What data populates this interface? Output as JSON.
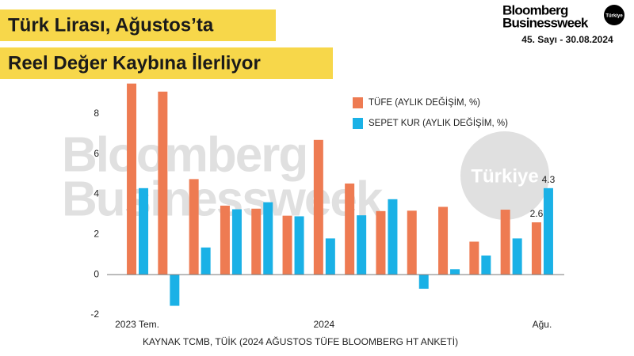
{
  "header": {
    "title": [
      "Türk Lirası, Ağustos’ta",
      "Reel Değer Kaybına İlerliyor"
    ]
  },
  "brand": {
    "name": [
      "Bloomberg",
      "Businessweek"
    ],
    "edition": "Türkiye",
    "issue": "45. Sayı - 30.08.2024"
  },
  "watermark": {
    "name": [
      "Bloomberg",
      "Businessweek"
    ],
    "edition": "Türkiye"
  },
  "chart_data": {
    "type": "bar",
    "categories": [
      "2023 Tem.",
      null,
      null,
      null,
      null,
      null,
      "2024",
      null,
      null,
      null,
      null,
      null,
      null,
      "Ağu."
    ],
    "series": [
      {
        "name": "TÜFE (AYLIK DEĞİŞİM, %)",
        "color": "#ee7b52",
        "values": [
          9.5,
          9.1,
          4.75,
          3.43,
          3.28,
          2.93,
          6.7,
          4.53,
          3.16,
          3.18,
          3.37,
          1.64,
          3.23,
          2.6
        ]
      },
      {
        "name": "SEPET KUR (AYLIK DEĞİŞİM, %)",
        "color": "#1ab1e6",
        "values": [
          4.3,
          -1.55,
          1.35,
          3.25,
          3.6,
          2.9,
          1.8,
          2.95,
          3.75,
          -0.7,
          0.27,
          0.95,
          1.8,
          4.3
        ]
      }
    ],
    "ylim": [
      -2,
      9.8
    ],
    "yticks": [
      -2,
      0,
      2,
      4,
      6,
      8
    ],
    "grid": false,
    "legend": "top-right",
    "source": "KAYNAK TCMB, TÜİK (2024 AĞUSTOS TÜFE BLOOMBERG HT ANKETİ)"
  }
}
